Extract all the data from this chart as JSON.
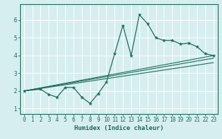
{
  "xlabel": "Humidex (Indice chaleur)",
  "ylabel": "",
  "bg_color": "#d6eef0",
  "grid_color": "#ffffff",
  "line_color": "#1a6b5a",
  "xlim": [
    -0.5,
    23.5
  ],
  "ylim": [
    0.7,
    6.9
  ],
  "xticks": [
    0,
    1,
    2,
    3,
    4,
    5,
    6,
    7,
    8,
    9,
    10,
    11,
    12,
    13,
    14,
    15,
    16,
    17,
    18,
    19,
    20,
    21,
    22,
    23
  ],
  "yticks": [
    1,
    2,
    3,
    4,
    5,
    6
  ],
  "main_x": [
    0,
    2,
    3,
    4,
    5,
    6,
    7,
    8,
    9,
    10,
    11,
    12,
    13,
    14,
    15,
    16,
    17,
    18,
    19,
    20,
    21,
    22,
    23
  ],
  "main_y": [
    2.0,
    2.1,
    1.8,
    1.65,
    2.2,
    2.2,
    1.65,
    1.3,
    1.85,
    2.5,
    4.1,
    5.7,
    4.0,
    6.3,
    5.8,
    5.0,
    4.85,
    4.85,
    4.65,
    4.7,
    4.5,
    4.1,
    4.0
  ],
  "trend1_x": [
    0,
    23
  ],
  "trend1_y": [
    2.0,
    4.0
  ],
  "trend2_x": [
    0,
    23
  ],
  "trend2_y": [
    2.0,
    3.85
  ],
  "trend3_x": [
    0,
    23
  ],
  "trend3_y": [
    2.0,
    3.6
  ]
}
